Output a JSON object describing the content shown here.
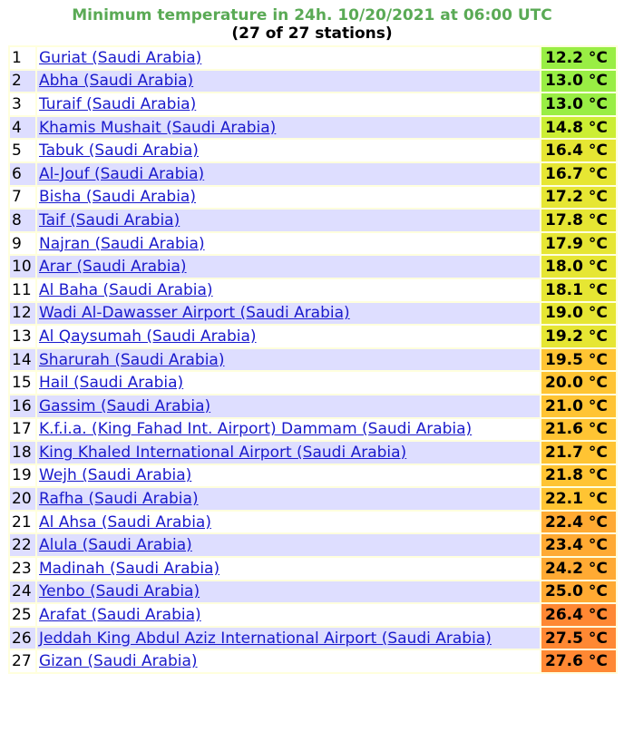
{
  "title": "Minimum temperature in 24h. 10/20/2021 at 06:00 UTC",
  "subtitle": "(27 of 27 stations)",
  "rows": [
    {
      "rank": "1",
      "station": "Guriat (Saudi Arabia)",
      "temp": "12.2 °C",
      "color": "#99ee44"
    },
    {
      "rank": "2",
      "station": "Abha (Saudi Arabia)",
      "temp": "13.0 °C",
      "color": "#99ee44"
    },
    {
      "rank": "3",
      "station": "Turaif (Saudi Arabia)",
      "temp": "13.0 °C",
      "color": "#99ee44"
    },
    {
      "rank": "4",
      "station": "Khamis Mushait (Saudi Arabia)",
      "temp": "14.8 °C",
      "color": "#ccee33"
    },
    {
      "rank": "5",
      "station": "Tabuk (Saudi Arabia)",
      "temp": "16.4 °C",
      "color": "#e6e633"
    },
    {
      "rank": "6",
      "station": "Al-Jouf (Saudi Arabia)",
      "temp": "16.7 °C",
      "color": "#e6e633"
    },
    {
      "rank": "7",
      "station": "Bisha (Saudi Arabia)",
      "temp": "17.2 °C",
      "color": "#e6e633"
    },
    {
      "rank": "8",
      "station": "Taif (Saudi Arabia)",
      "temp": "17.8 °C",
      "color": "#e6e633"
    },
    {
      "rank": "9",
      "station": "Najran (Saudi Arabia)",
      "temp": "17.9 °C",
      "color": "#e6e633"
    },
    {
      "rank": "10",
      "station": "Arar (Saudi Arabia)",
      "temp": "18.0 °C",
      "color": "#e6e633"
    },
    {
      "rank": "11",
      "station": "Al Baha (Saudi Arabia)",
      "temp": "18.1 °C",
      "color": "#e6e633"
    },
    {
      "rank": "12",
      "station": "Wadi Al-Dawasser Airport (Saudi Arabia)",
      "temp": "19.0 °C",
      "color": "#e6e633"
    },
    {
      "rank": "13",
      "station": "Al Qaysumah (Saudi Arabia)",
      "temp": "19.2 °C",
      "color": "#e6e633"
    },
    {
      "rank": "14",
      "station": "Sharurah (Saudi Arabia)",
      "temp": "19.5 °C",
      "color": "#ffc433"
    },
    {
      "rank": "15",
      "station": "Hail (Saudi Arabia)",
      "temp": "20.0 °C",
      "color": "#ffc433"
    },
    {
      "rank": "16",
      "station": "Gassim (Saudi Arabia)",
      "temp": "21.0 °C",
      "color": "#ffc433"
    },
    {
      "rank": "17",
      "station": "K.f.i.a. (King Fahad Int. Airport) Dammam (Saudi Arabia)",
      "temp": "21.6 °C",
      "color": "#ffc433"
    },
    {
      "rank": "18",
      "station": "King Khaled International Airport (Saudi Arabia)",
      "temp": "21.7 °C",
      "color": "#ffc433"
    },
    {
      "rank": "19",
      "station": "Wejh (Saudi Arabia)",
      "temp": "21.8 °C",
      "color": "#ffc433"
    },
    {
      "rank": "20",
      "station": "Rafha (Saudi Arabia)",
      "temp": "22.1 °C",
      "color": "#ffc433"
    },
    {
      "rank": "21",
      "station": "Al Ahsa (Saudi Arabia)",
      "temp": "22.4 °C",
      "color": "#ffaa33"
    },
    {
      "rank": "22",
      "station": "Alula (Saudi Arabia)",
      "temp": "23.4 °C",
      "color": "#ffaa33"
    },
    {
      "rank": "23",
      "station": "Madinah (Saudi Arabia)",
      "temp": "24.2 °C",
      "color": "#ffaa33"
    },
    {
      "rank": "24",
      "station": "Yenbo (Saudi Arabia)",
      "temp": "25.0 °C",
      "color": "#ffaa33"
    },
    {
      "rank": "25",
      "station": "Arafat (Saudi Arabia)",
      "temp": "26.4 °C",
      "color": "#ff8833"
    },
    {
      "rank": "26",
      "station": "Jeddah King Abdul Aziz International Airport (Saudi Arabia)",
      "temp": "27.5 °C",
      "color": "#ff8833"
    },
    {
      "rank": "27",
      "station": "Gizan (Saudi Arabia)",
      "temp": "27.6 °C",
      "color": "#ff8833"
    }
  ]
}
